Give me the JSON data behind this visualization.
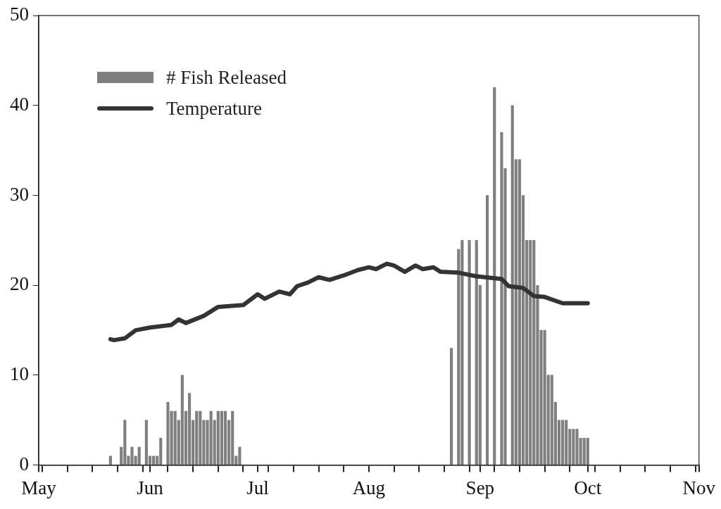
{
  "chart_data": {
    "type": "bar",
    "legend": "top left",
    "grid": false,
    "xlim": [
      "--05-01",
      "--11-01"
    ],
    "xticks": [
      {
        "value": "--05-01",
        "label": "May"
      },
      {
        "value": "--05-02",
        "label": null
      },
      {
        "value": "--05-09",
        "label": null
      },
      {
        "value": "--05-16",
        "label": null
      },
      {
        "value": "--05-23",
        "label": null
      },
      {
        "value": "--05-30",
        "label": null
      },
      {
        "value": "--06-01",
        "label": "Jun"
      },
      {
        "value": "--06-06",
        "label": null
      },
      {
        "value": "--06-13",
        "label": null
      },
      {
        "value": "--06-20",
        "label": null
      },
      {
        "value": "--06-27",
        "label": null
      },
      {
        "value": "--07-01",
        "label": "Jul"
      },
      {
        "value": "--07-04",
        "label": null
      },
      {
        "value": "--07-11",
        "label": null
      },
      {
        "value": "--07-18",
        "label": null
      },
      {
        "value": "--07-25",
        "label": null
      },
      {
        "value": "--08-01",
        "label": "Aug"
      },
      {
        "value": "--08-08",
        "label": null
      },
      {
        "value": "--08-15",
        "label": null
      },
      {
        "value": "--08-22",
        "label": null
      },
      {
        "value": "--08-29",
        "label": null
      },
      {
        "value": "--09-01",
        "label": "Sep"
      },
      {
        "value": "--09-05",
        "label": null
      },
      {
        "value": "--09-12",
        "label": null
      },
      {
        "value": "--09-19",
        "label": null
      },
      {
        "value": "--09-26",
        "label": null
      },
      {
        "value": "--10-01",
        "label": "Oct"
      },
      {
        "value": "--10-03",
        "label": null
      },
      {
        "value": "--10-10",
        "label": null
      },
      {
        "value": "--10-17",
        "label": null
      },
      {
        "value": "--10-24",
        "label": null
      },
      {
        "value": "--10-31",
        "label": null
      },
      {
        "value": "--11-01",
        "label": "Nov"
      }
    ],
    "ylim": [
      0,
      50
    ],
    "yticks": [
      0,
      10,
      20,
      30,
      40,
      50
    ],
    "series": [
      {
        "name": "# Fish Released",
        "color": "#7f7f7f",
        "x": [
          "--05-21",
          "--05-24",
          "--05-25",
          "--05-26",
          "--05-27",
          "--05-28",
          "--05-29",
          "--05-31",
          "--06-01",
          "--06-02",
          "--06-03",
          "--06-04",
          "--06-06",
          "--06-07",
          "--06-08",
          "--06-09",
          "--06-10",
          "--06-11",
          "--06-12",
          "--06-13",
          "--06-14",
          "--06-15",
          "--06-16",
          "--06-17",
          "--06-18",
          "--06-19",
          "--06-20",
          "--06-21",
          "--06-22",
          "--06-23",
          "--06-24",
          "--06-25",
          "--06-26",
          "--08-24",
          "--08-26",
          "--08-27",
          "--08-29",
          "--08-31",
          "--09-01",
          "--09-03",
          "--09-05",
          "--09-07",
          "--09-08",
          "--09-10",
          "--09-11",
          "--09-12",
          "--09-13",
          "--09-14",
          "--09-15",
          "--09-16",
          "--09-17",
          "--09-18",
          "--09-19",
          "--09-20",
          "--09-21",
          "--09-22",
          "--09-23",
          "--09-24",
          "--09-25",
          "--09-26",
          "--09-27",
          "--09-28",
          "--09-29",
          "--09-30",
          "--10-01"
        ],
        "values": [
          1,
          2,
          5,
          1,
          2,
          1,
          2,
          5,
          1,
          1,
          1,
          3,
          7,
          6,
          6,
          5,
          10,
          6,
          8,
          5,
          6,
          6,
          5,
          5,
          6,
          5,
          6,
          6,
          6,
          5,
          6,
          1,
          2,
          13,
          24,
          25,
          25,
          25,
          20,
          30,
          42,
          37,
          33,
          40,
          34,
          34,
          30,
          25,
          25,
          25,
          20,
          15,
          15,
          10,
          10,
          7,
          5,
          5,
          5,
          4,
          4,
          4,
          3,
          3,
          3
        ]
      },
      {
        "name": "Temperature",
        "type": "line",
        "color": "#333333",
        "line_style": "solid",
        "marker": "none",
        "x": [
          "--05-21",
          "--05-22",
          "--05-25",
          "--05-28",
          "--06-01",
          "--06-07",
          "--06-09",
          "--06-11",
          "--06-16",
          "--06-20",
          "--06-27",
          "--07-01",
          "--07-03",
          "--07-07",
          "--07-10",
          "--07-12",
          "--07-15",
          "--07-18",
          "--07-21",
          "--07-25",
          "--07-29",
          "--08-01",
          "--08-03",
          "--08-06",
          "--08-08",
          "--08-11",
          "--08-14",
          "--08-16",
          "--08-19",
          "--08-21",
          "--08-26",
          "--08-31",
          "--09-07",
          "--09-09",
          "--09-13",
          "--09-16",
          "--09-19",
          "--09-24",
          "--10-01"
        ],
        "values": [
          14.0,
          13.9,
          14.1,
          15.0,
          15.3,
          15.6,
          16.2,
          15.8,
          16.6,
          17.6,
          17.8,
          19.0,
          18.5,
          19.3,
          19.0,
          19.9,
          20.3,
          20.9,
          20.6,
          21.1,
          21.7,
          22.0,
          21.8,
          22.4,
          22.2,
          21.5,
          22.2,
          21.8,
          22.0,
          21.5,
          21.4,
          21.0,
          20.7,
          19.9,
          19.7,
          18.8,
          18.7,
          18.0,
          18.0
        ]
      }
    ]
  }
}
